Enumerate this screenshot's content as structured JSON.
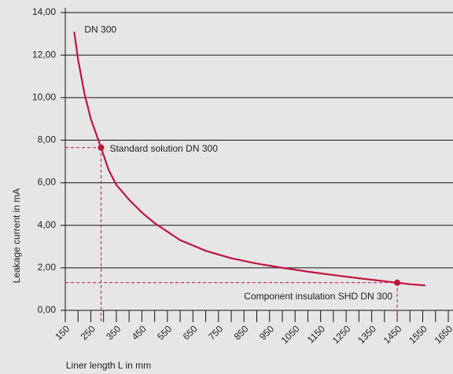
{
  "chart_data": {
    "type": "line",
    "x_label": "Liner length L in mm",
    "y_label": "Leakage current in mA",
    "xlim": [
      150,
      1650
    ],
    "ylim": [
      0,
      14
    ],
    "xticks": [
      150,
      250,
      350,
      450,
      550,
      650,
      750,
      850,
      950,
      1050,
      1150,
      1250,
      1350,
      1450,
      1550,
      1650
    ],
    "x_minor_ticks": [
      200,
      300,
      400,
      500,
      600,
      700,
      800,
      900,
      1000,
      1100,
      1200,
      1300,
      1400,
      1500,
      1600
    ],
    "yticks": [
      {
        "value": 0,
        "label": "0,00"
      },
      {
        "value": 2,
        "label": "2,00"
      },
      {
        "value": 4,
        "label": "4,00"
      },
      {
        "value": 6,
        "label": "6,00"
      },
      {
        "value": 8,
        "label": "8,00"
      },
      {
        "value": 10,
        "label": "10,00"
      },
      {
        "value": 12,
        "label": "12,00"
      },
      {
        "value": 14,
        "label": "14,00"
      }
    ],
    "grid": true,
    "series": [
      {
        "name": "DN 300",
        "color": "#c0143c",
        "x": [
          185,
          200,
          225,
          250,
          290,
          320,
          350,
          400,
          450,
          500,
          550,
          600,
          700,
          800,
          900,
          1000,
          1100,
          1200,
          1300,
          1400,
          1450,
          1500,
          1560
        ],
        "values": [
          13.1,
          11.8,
          10.2,
          9.0,
          7.65,
          6.6,
          5.9,
          5.2,
          4.6,
          4.1,
          3.7,
          3.3,
          2.8,
          2.45,
          2.2,
          2.0,
          1.82,
          1.66,
          1.51,
          1.37,
          1.3,
          1.23,
          1.17
        ]
      }
    ],
    "points": [
      {
        "label": "Standard solution DN 300",
        "x": 290,
        "y": 7.65
      },
      {
        "label": "Component insulation SHD DN 300",
        "x": 1450,
        "y": 1.3
      }
    ]
  }
}
